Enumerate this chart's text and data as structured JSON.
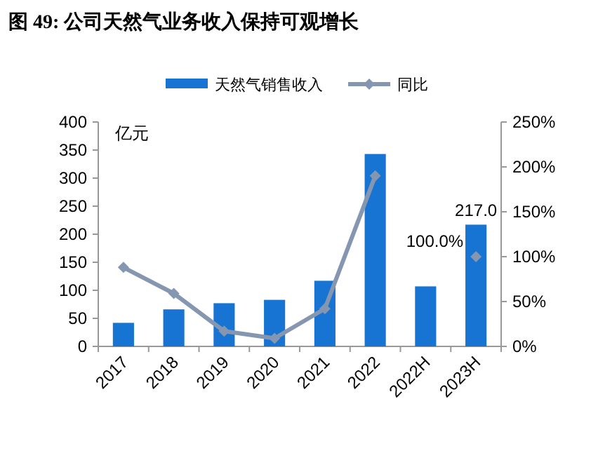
{
  "chart_data": {
    "type": "bar",
    "title": "图 49:  公司天然气业务收入保持可观增长",
    "ylabel": "亿元",
    "categories": [
      "2017",
      "2018",
      "2019",
      "2020",
      "2021",
      "2022",
      "2022H",
      "2023H"
    ],
    "series": [
      {
        "name": "天然气销售收入",
        "color": "#1874d2",
        "values": [
          42,
          66,
          77,
          83,
          117,
          343,
          107,
          217
        ],
        "value_labels": [
          null,
          null,
          null,
          null,
          null,
          null,
          null,
          "217.0"
        ]
      },
      {
        "name": "同比",
        "type": "line",
        "axis": "y2",
        "color": "#8496b0",
        "values": [
          88,
          59,
          17,
          9,
          42,
          190,
          null,
          100
        ],
        "value_labels": [
          null,
          null,
          null,
          null,
          null,
          null,
          null,
          "100.0%"
        ]
      }
    ],
    "marker": "diamond",
    "legend": "top",
    "grid": false,
    "ylim": [
      0,
      400
    ],
    "yticks": [
      0,
      50,
      100,
      150,
      200,
      250,
      300,
      350,
      400
    ],
    "y2lim": [
      0,
      250
    ],
    "y2ticks": [
      {
        "value": 0,
        "label": "0%"
      },
      {
        "value": 50,
        "label": "50%"
      },
      {
        "value": 100,
        "label": "100%"
      },
      {
        "value": 150,
        "label": "150%"
      },
      {
        "value": 200,
        "label": "200%"
      },
      {
        "value": 250,
        "label": "250%"
      }
    ]
  }
}
